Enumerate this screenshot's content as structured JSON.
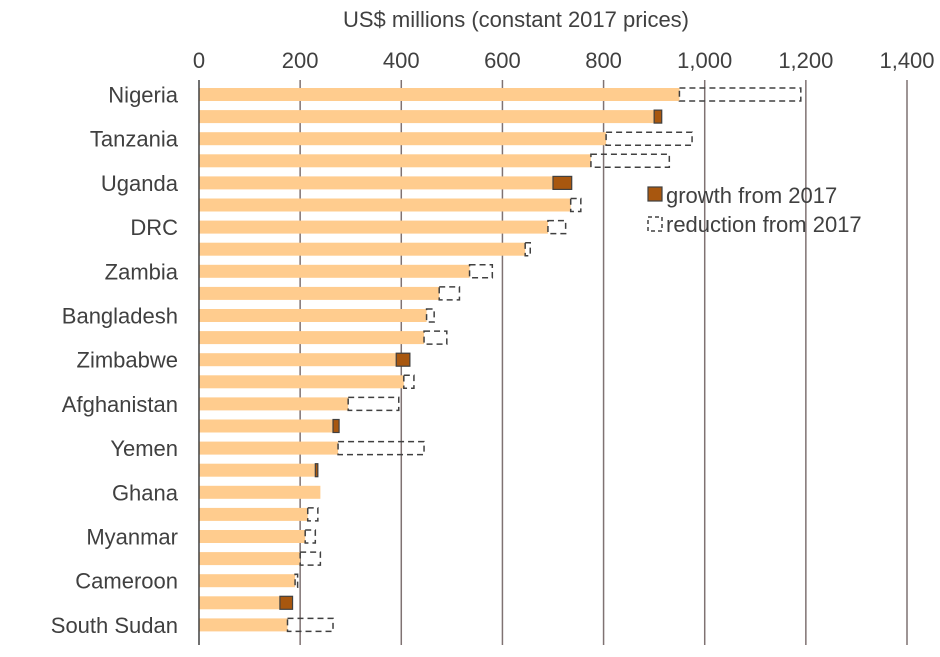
{
  "chart_data": {
    "type": "bar",
    "orientation": "horizontal",
    "stacked": true,
    "xlabel": "US$ millions (constant 2017 prices)",
    "x_axis_position": "top",
    "xlim": [
      0,
      1400
    ],
    "x_ticks": [
      0,
      200,
      400,
      600,
      800,
      1000,
      1200,
      1400
    ],
    "x_tick_labels": [
      "0",
      "200",
      "400",
      "600",
      "800",
      "1,000",
      "1,200",
      "1,400"
    ],
    "grid": "vertical",
    "categories": [
      "Nigeria",
      "",
      "Tanzania",
      "",
      "Uganda",
      "",
      "DRC",
      "",
      "Zambia",
      "",
      "Bangladesh",
      "",
      "Zimbabwe",
      "",
      "Afghanistan",
      "",
      "Yemen",
      "",
      "Ghana",
      "",
      "Myanmar",
      "",
      "Cameroon",
      "",
      "South Sudan"
    ],
    "series": [
      {
        "color": "#FFCC8E",
        "values": [
          950,
          900,
          805,
          775,
          700,
          735,
          690,
          645,
          535,
          475,
          450,
          445,
          390,
          405,
          295,
          265,
          275,
          230,
          240,
          215,
          210,
          200,
          190,
          160,
          175
        ]
      },
      {
        "name": "growth from 2017",
        "color": "#A8570F",
        "values": [
          0,
          15,
          0,
          0,
          37,
          0,
          0,
          0,
          0,
          0,
          0,
          0,
          27,
          0,
          0,
          12,
          0,
          5,
          0,
          0,
          0,
          0,
          0,
          25,
          0
        ]
      },
      {
        "name": "reduction from 2017",
        "color": "#404040",
        "style": "dashed-outline",
        "values": [
          240,
          0,
          170,
          155,
          0,
          20,
          35,
          10,
          45,
          40,
          15,
          45,
          0,
          20,
          100,
          0,
          170,
          0,
          0,
          20,
          20,
          40,
          5,
          0,
          90
        ]
      }
    ],
    "legend": {
      "placement": "right",
      "items": [
        {
          "label": "growth from 2017",
          "style": "filled",
          "color": "#A8570F"
        },
        {
          "label": "reduction from 2017",
          "style": "dashed",
          "color": "#404040"
        }
      ]
    }
  }
}
